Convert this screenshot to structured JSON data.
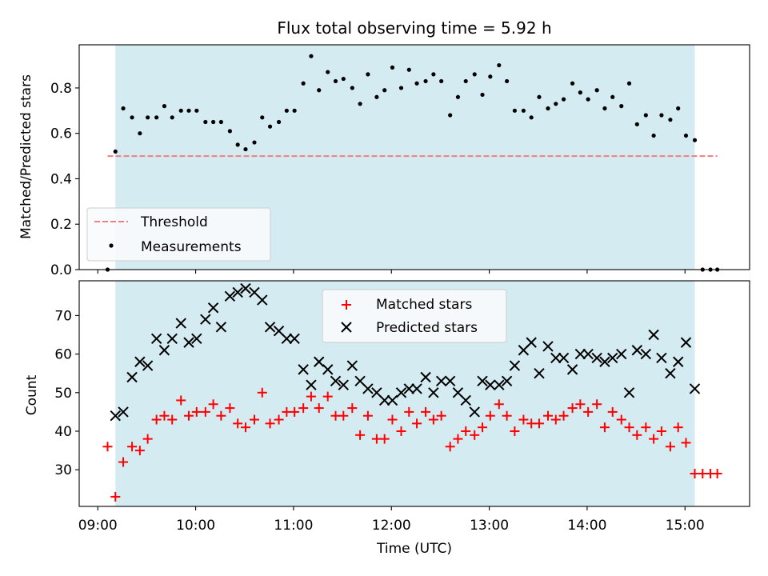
{
  "chart_data": [
    {
      "type": "scatter",
      "title": "Flux total observing time = 5.92 h",
      "xlabel": "",
      "ylabel": "Matched/Predicted stars",
      "ylim": [
        0,
        0.99
      ],
      "yticks": [
        "0.0",
        "0.2",
        "0.4",
        "0.6",
        "0.8"
      ],
      "ytick_values": [
        0,
        0.2,
        0.4,
        0.6,
        0.8
      ],
      "shaded_span": {
        "start": 9.18,
        "end": 15.1,
        "color": "#d4ebf2"
      },
      "threshold": {
        "name": "Threshold",
        "y": 0.5,
        "x_start": 9.1,
        "x_end": 15.33,
        "color": "#f08080"
      },
      "legend": {
        "position": "lower-left",
        "entries": [
          "Threshold",
          "Measurements"
        ]
      },
      "series": [
        {
          "name": "Measurements",
          "marker": "dot",
          "color": "#000000",
          "x": [
            9.1,
            9.18,
            9.26,
            9.35,
            9.43,
            9.51,
            9.6,
            9.68,
            9.76,
            9.85,
            9.93,
            10.01,
            10.1,
            10.18,
            10.26,
            10.35,
            10.43,
            10.51,
            10.6,
            10.68,
            10.76,
            10.85,
            10.93,
            11.01,
            11.1,
            11.18,
            11.26,
            11.35,
            11.43,
            11.51,
            11.6,
            11.68,
            11.76,
            11.85,
            11.93,
            12.01,
            12.1,
            12.18,
            12.26,
            12.35,
            12.43,
            12.51,
            12.6,
            12.68,
            12.76,
            12.85,
            12.93,
            13.01,
            13.1,
            13.18,
            13.26,
            13.35,
            13.43,
            13.51,
            13.6,
            13.68,
            13.76,
            13.85,
            13.93,
            14.01,
            14.1,
            14.18,
            14.26,
            14.35,
            14.43,
            14.51,
            14.6,
            14.68,
            14.76,
            14.85,
            14.93,
            15.01,
            15.1,
            15.18,
            15.26,
            15.33
          ],
          "y": [
            0.0,
            0.52,
            0.71,
            0.67,
            0.6,
            0.67,
            0.67,
            0.72,
            0.67,
            0.7,
            0.7,
            0.7,
            0.65,
            0.65,
            0.65,
            0.61,
            0.55,
            0.53,
            0.56,
            0.67,
            0.63,
            0.65,
            0.7,
            0.7,
            0.82,
            0.94,
            0.79,
            0.87,
            0.83,
            0.84,
            0.8,
            0.73,
            0.86,
            0.76,
            0.79,
            0.89,
            0.8,
            0.88,
            0.82,
            0.83,
            0.86,
            0.83,
            0.68,
            0.76,
            0.83,
            0.86,
            0.77,
            0.85,
            0.9,
            0.83,
            0.7,
            0.7,
            0.67,
            0.76,
            0.71,
            0.73,
            0.75,
            0.82,
            0.78,
            0.75,
            0.79,
            0.71,
            0.76,
            0.72,
            0.82,
            0.64,
            0.68,
            0.59,
            0.68,
            0.66,
            0.71,
            0.59,
            0.57,
            0.0,
            0.0,
            0.0
          ]
        }
      ]
    },
    {
      "type": "scatter",
      "title": "",
      "xlabel": "Time (UTC)",
      "ylabel": "Count",
      "ylim": [
        20.5,
        79
      ],
      "yticks": [
        "30",
        "40",
        "50",
        "60",
        "70"
      ],
      "ytick_values": [
        30,
        40,
        50,
        60,
        70
      ],
      "xlim": [
        8.81,
        15.66
      ],
      "xticks": [
        "09:00",
        "10:00",
        "11:00",
        "12:00",
        "13:00",
        "14:00",
        "15:00"
      ],
      "xtick_values": [
        9,
        10,
        11,
        12,
        13,
        14,
        15
      ],
      "shaded_span": {
        "start": 9.18,
        "end": 15.1,
        "color": "#d4ebf2"
      },
      "legend": {
        "position": "top-center",
        "entries": [
          "Matched stars",
          "Predicted stars"
        ]
      },
      "series": [
        {
          "name": "Matched stars",
          "marker": "plus",
          "color": "#ff0000",
          "x": [
            9.1,
            9.18,
            9.26,
            9.35,
            9.43,
            9.51,
            9.6,
            9.68,
            9.76,
            9.85,
            9.93,
            10.01,
            10.1,
            10.18,
            10.26,
            10.35,
            10.43,
            10.51,
            10.6,
            10.68,
            10.76,
            10.85,
            10.93,
            11.01,
            11.1,
            11.18,
            11.26,
            11.35,
            11.43,
            11.51,
            11.6,
            11.68,
            11.76,
            11.85,
            11.93,
            12.01,
            12.1,
            12.18,
            12.26,
            12.35,
            12.43,
            12.51,
            12.6,
            12.68,
            12.76,
            12.85,
            12.93,
            13.01,
            13.1,
            13.18,
            13.26,
            13.35,
            13.43,
            13.51,
            13.6,
            13.68,
            13.76,
            13.85,
            13.93,
            14.01,
            14.1,
            14.18,
            14.26,
            14.35,
            14.43,
            14.51,
            14.6,
            14.68,
            14.76,
            14.85,
            14.93,
            15.01,
            15.1,
            15.18,
            15.26,
            15.33
          ],
          "y": [
            36,
            23,
            32,
            36,
            35,
            38,
            43,
            44,
            43,
            48,
            44,
            45,
            45,
            47,
            44,
            46,
            42,
            41,
            43,
            50,
            42,
            43,
            45,
            45,
            46,
            49,
            46,
            49,
            44,
            44,
            46,
            39,
            44,
            38,
            38,
            43,
            40,
            45,
            42,
            45,
            43,
            44,
            36,
            38,
            40,
            39,
            41,
            44,
            47,
            44,
            40,
            43,
            42,
            42,
            44,
            43,
            44,
            46,
            47,
            45,
            47,
            41,
            45,
            43,
            41,
            39,
            41,
            38,
            40,
            36,
            41,
            37,
            29,
            29,
            29,
            29
          ]
        },
        {
          "name": "Predicted stars",
          "marker": "x",
          "color": "#000000",
          "x": [
            9.18,
            9.26,
            9.35,
            9.43,
            9.51,
            9.6,
            9.68,
            9.76,
            9.85,
            9.93,
            10.01,
            10.1,
            10.18,
            10.26,
            10.35,
            10.43,
            10.51,
            10.6,
            10.68,
            10.76,
            10.85,
            10.93,
            11.01,
            11.1,
            11.18,
            11.26,
            11.35,
            11.43,
            11.51,
            11.6,
            11.68,
            11.76,
            11.85,
            11.93,
            12.01,
            12.1,
            12.18,
            12.26,
            12.35,
            12.43,
            12.51,
            12.6,
            12.68,
            12.76,
            12.85,
            12.93,
            13.01,
            13.1,
            13.18,
            13.26,
            13.35,
            13.43,
            13.51,
            13.6,
            13.68,
            13.76,
            13.85,
            13.93,
            14.01,
            14.1,
            14.18,
            14.26,
            14.35,
            14.43,
            14.51,
            14.6,
            14.68,
            14.76,
            14.85,
            14.93,
            15.01,
            15.1
          ],
          "y": [
            44,
            45,
            54,
            58,
            57,
            64,
            61,
            64,
            68,
            63,
            64,
            69,
            72,
            67,
            75,
            76,
            77,
            76,
            74,
            67,
            66,
            64,
            64,
            56,
            52,
            58,
            56,
            53,
            52,
            57,
            53,
            51,
            50,
            48,
            48,
            50,
            51,
            51,
            54,
            50,
            53,
            53,
            50,
            48,
            45,
            53,
            52,
            52,
            53,
            57,
            61,
            63,
            55,
            62,
            59,
            59,
            56,
            60,
            60,
            59,
            58,
            59,
            60,
            50,
            61,
            60,
            65,
            59,
            55,
            58,
            63,
            51
          ]
        }
      ]
    }
  ]
}
